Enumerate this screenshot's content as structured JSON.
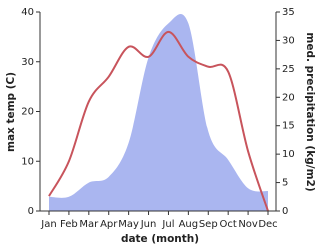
{
  "chart_data": {
    "type": "line-area",
    "x_label": "date (month)",
    "y_label": "max temp (C)",
    "y2_label": "med. precipitation (kg/m2)",
    "categories": [
      "Jan",
      "Feb",
      "Mar",
      "Apr",
      "May",
      "Jun",
      "Jul",
      "Aug",
      "Sep",
      "Oct",
      "Nov",
      "Dec"
    ],
    "series": [
      {
        "style": "area",
        "axis": "y2",
        "color": "#aab6f0",
        "values": [
          2.5,
          2.5,
          5,
          6,
          12,
          27,
          33,
          33,
          14,
          9,
          4,
          3.5
        ]
      },
      {
        "style": "line",
        "color": "#c8545c",
        "values": [
          3,
          10,
          22,
          27,
          33,
          31,
          36,
          31,
          29,
          28,
          12,
          0
        ]
      }
    ],
    "ylim": [
      0,
      40
    ],
    "yticks": [
      0,
      10,
      20,
      30,
      40
    ],
    "y2lim": [
      0,
      35
    ],
    "y2ticks": [
      0,
      5,
      10,
      15,
      20,
      25,
      30,
      35
    ]
  }
}
